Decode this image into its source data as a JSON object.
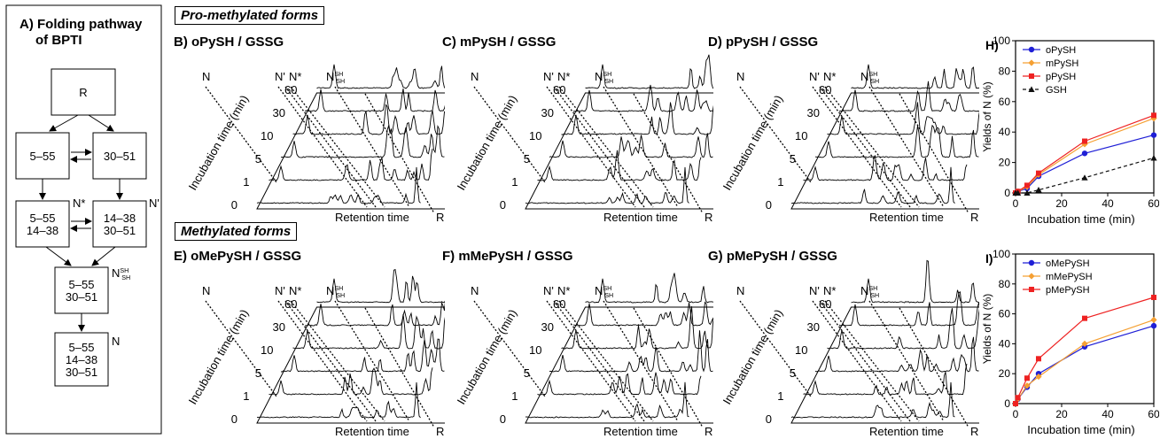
{
  "pathway": {
    "title_line1": "A) Folding pathway",
    "title_line2": "of BPTI",
    "nodes": {
      "R": [
        "R"
      ],
      "s555": [
        "5–55"
      ],
      "s3051": [
        "30–51"
      ],
      "nstar": [
        "5–55",
        "14–38"
      ],
      "nprime": [
        "14–38",
        "30–51"
      ],
      "nshsh": [
        "5–55",
        "30–51"
      ],
      "native": [
        "5–55",
        "14–38",
        "30–51"
      ]
    },
    "labels": {
      "nstar": "N*",
      "nprime": "N'",
      "nshsh_main": "N",
      "nshsh_sup": "SH",
      "nshsh_sub": "SH",
      "native": "N"
    }
  },
  "sections": {
    "pro": "Pro-methylated forms",
    "met": "Methylated forms"
  },
  "hplc_common": {
    "y_axis_label": "Incubation time (min)",
    "x_axis_label": "Retention time",
    "times": [
      "60",
      "30",
      "10",
      "5",
      "1",
      "0"
    ],
    "peak_N": "N",
    "peak_Np": "N'",
    "peak_Nstar": "N*",
    "peak_NSH": "N",
    "peak_NSH_sup": "SH",
    "peak_NSH_sub": "SH",
    "peak_R": "R"
  },
  "hplc_panels": [
    {
      "id": "B",
      "title": "B) oPySH / GSSG"
    },
    {
      "id": "C",
      "title": "C) mPySH / GSSG"
    },
    {
      "id": "D",
      "title": "D) pPySH / GSSG"
    },
    {
      "id": "E",
      "title": "E) oMePySH / GSSG"
    },
    {
      "id": "F",
      "title": "F) mMePySH / GSSG"
    },
    {
      "id": "G",
      "title": "G) pMePySH / GSSG"
    }
  ],
  "chart_data": [
    {
      "type": "line",
      "panel": "H)",
      "xlabel": "Incubation time (min)",
      "ylabel": "Yields of N (%)",
      "xlim": [
        0,
        60
      ],
      "ylim": [
        0,
        100
      ],
      "xticks": [
        0,
        20,
        40,
        60
      ],
      "yticks": [
        0,
        20,
        40,
        60,
        80,
        100
      ],
      "legend_position": "top-left",
      "x": [
        0,
        1,
        5,
        10,
        30,
        60
      ],
      "series": [
        {
          "name": "oPySH",
          "color": "#1f1fd6",
          "marker": "circle",
          "dash": false,
          "values": [
            0,
            1,
            3,
            11,
            26,
            38
          ]
        },
        {
          "name": "mPySH",
          "color": "#f5a033",
          "marker": "diamond",
          "dash": false,
          "values": [
            0,
            1,
            4,
            12,
            32,
            49
          ]
        },
        {
          "name": "pPySH",
          "color": "#ee2222",
          "marker": "square",
          "dash": false,
          "values": [
            0,
            1,
            5,
            13,
            34,
            51
          ]
        },
        {
          "name": "GSH",
          "color": "#111111",
          "marker": "triangle",
          "dash": true,
          "values": [
            0,
            0,
            0,
            2,
            10,
            23
          ]
        }
      ]
    },
    {
      "type": "line",
      "panel": "I)",
      "xlabel": "Incubation time (min)",
      "ylabel": "Yields of N (%)",
      "xlim": [
        0,
        60
      ],
      "ylim": [
        0,
        100
      ],
      "xticks": [
        0,
        20,
        40,
        60
      ],
      "yticks": [
        0,
        20,
        40,
        60,
        80,
        100
      ],
      "legend_position": "top-left",
      "x": [
        0,
        1,
        5,
        10,
        30,
        60
      ],
      "series": [
        {
          "name": "oMePySH",
          "color": "#1f1fd6",
          "marker": "circle",
          "dash": false,
          "values": [
            0,
            3,
            11,
            20,
            38,
            52
          ]
        },
        {
          "name": "mMePySH",
          "color": "#f5a033",
          "marker": "diamond",
          "dash": false,
          "values": [
            0,
            3,
            12,
            18,
            40,
            56
          ]
        },
        {
          "name": "pMePySH",
          "color": "#ee2222",
          "marker": "square",
          "dash": false,
          "values": [
            0,
            4,
            17,
            30,
            57,
            71
          ]
        }
      ]
    }
  ]
}
